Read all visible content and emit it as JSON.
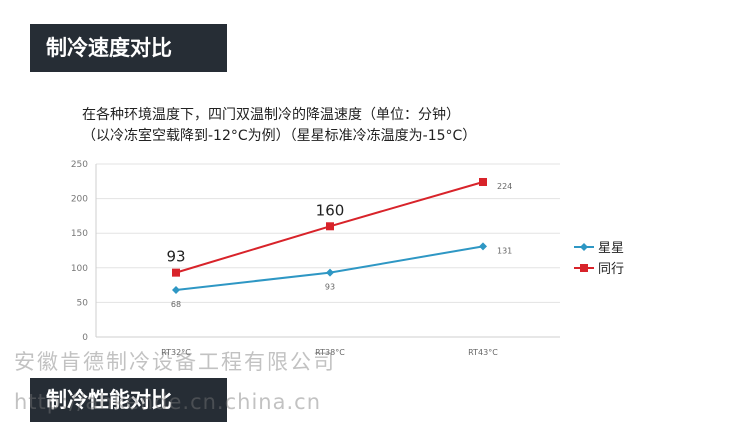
{
  "banners": {
    "top": "制冷速度对比",
    "bottom": "制冷性能对比"
  },
  "headings": {
    "line1": "在各种环境温度下，四门双温制冷的降温速度（单位：分钟）",
    "line2": "（以冷冻室空载降到-12°C为例）（星星标准冷冻温度为-15°C）"
  },
  "watermark": {
    "company": "安徽肯德制冷设备工程有限公司",
    "url": "http://ahkende.cn.china.cn"
  },
  "chart_data": {
    "type": "line",
    "categories": [
      "RT32°C",
      "RT38°C",
      "RT43°C"
    ],
    "series": [
      {
        "name": "星星",
        "values": [
          68,
          93,
          131
        ],
        "color": "#2e97c4",
        "marker": "diamond",
        "labels": [
          "68",
          "93",
          "131"
        ]
      },
      {
        "name": "同行",
        "values": [
          93,
          160,
          224
        ],
        "color": "#d8232a",
        "marker": "square",
        "labels": [
          "93",
          "160",
          "224"
        ]
      }
    ],
    "ylim": [
      0,
      250
    ],
    "yticks": [
      0,
      50,
      100,
      150,
      200,
      250
    ],
    "grid": true,
    "legend": "right"
  }
}
